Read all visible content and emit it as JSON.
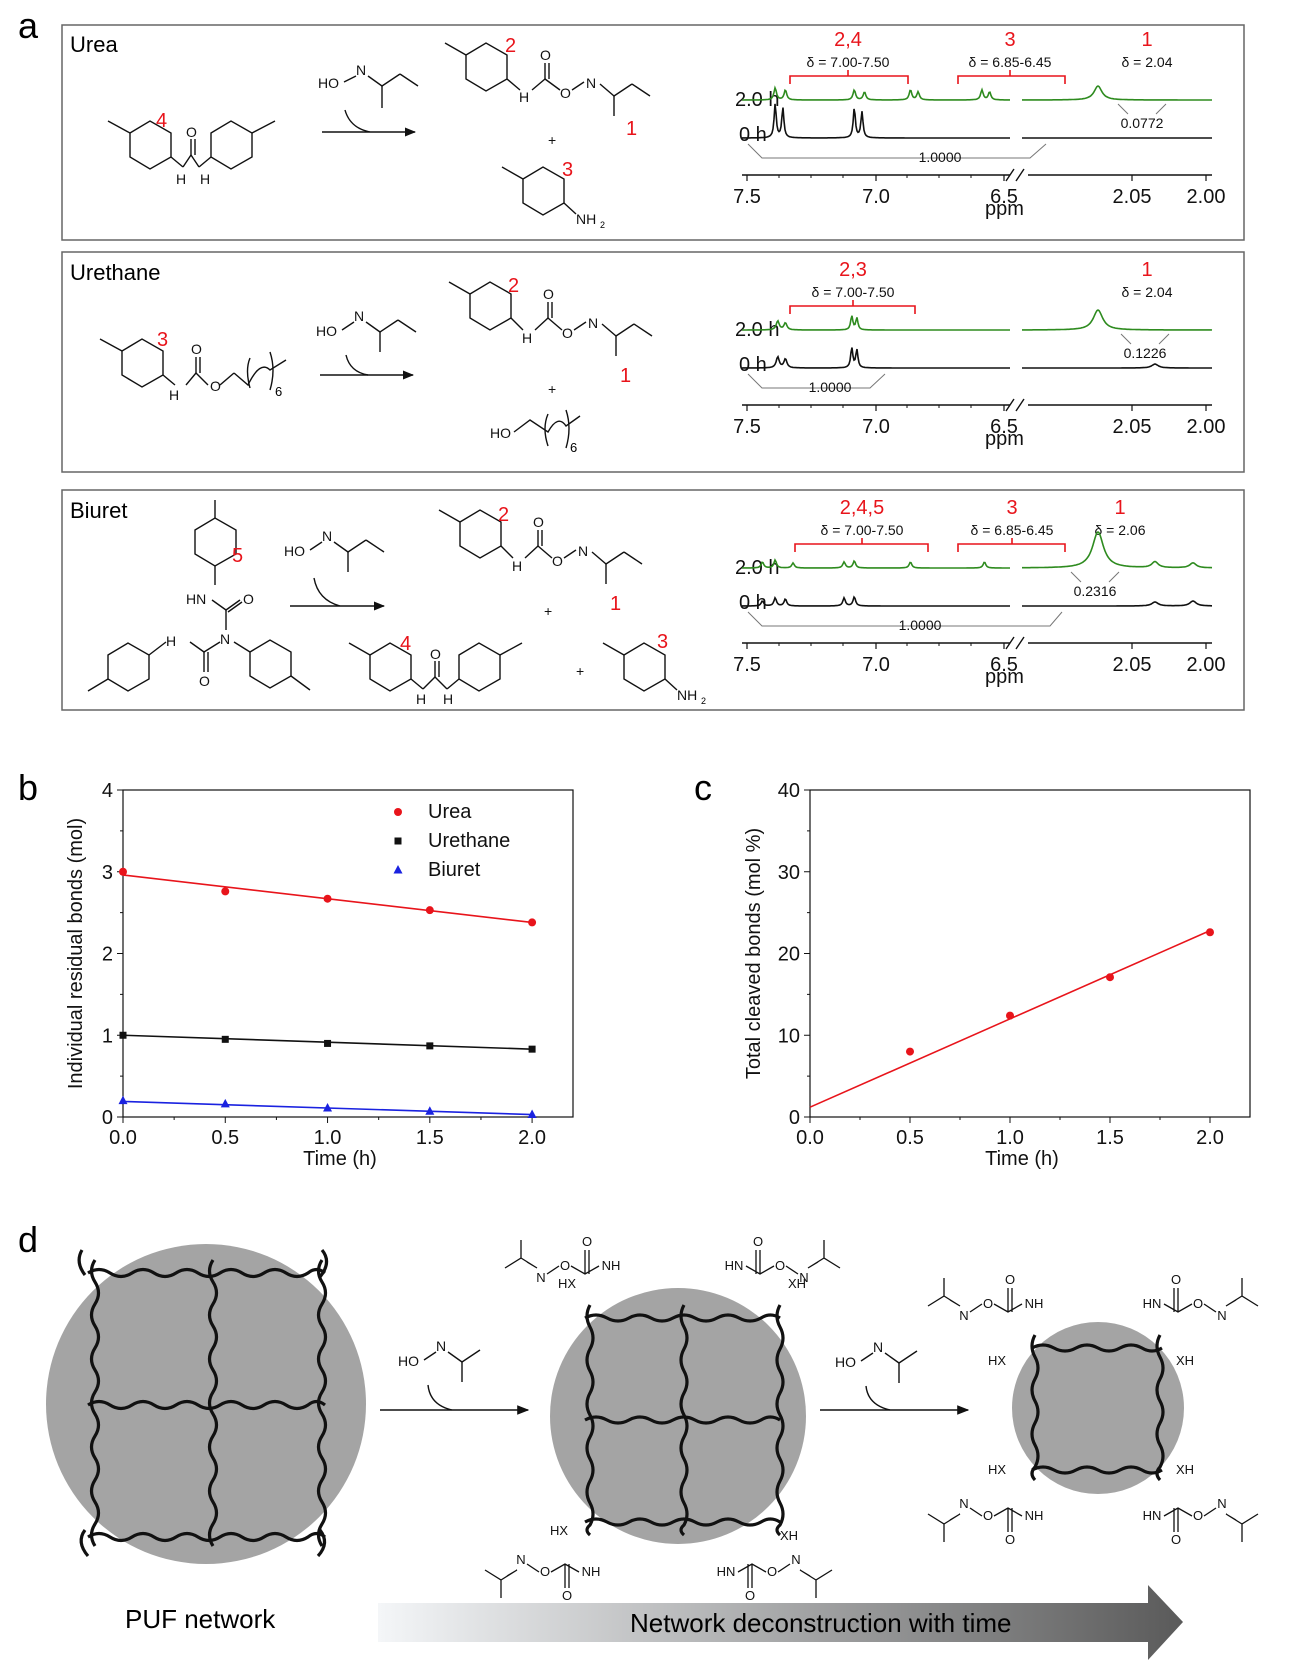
{
  "panel_letters": {
    "a": "a",
    "b": "b",
    "c": "c",
    "d": "d"
  },
  "panel_a": {
    "rows": [
      {
        "name": "Urea",
        "reactant_label": "4",
        "reagent": "HO",
        "product_label_top": "2",
        "product_label_methyl": "1",
        "plus": "+",
        "byproduct_label": "3",
        "byproduct_group": "NH",
        "byproduct_sub": "2",
        "nmr": {
          "groups": [
            {
              "label": "2,4",
              "range": "δ = 7.00-7.50"
            },
            {
              "label": "3",
              "range": "δ = 6.85-6.45"
            },
            {
              "label": "1",
              "range": "δ = 2.04"
            }
          ],
          "time_top": "2.0 h",
          "time_bottom": "0 h",
          "integral_main": "1.0000",
          "integral_peak": "0.0772",
          "axis_unit": "ppm",
          "ticks_left": [
            "7.5",
            "7.0",
            "6.5"
          ],
          "ticks_right": [
            "2.05",
            "2.00"
          ]
        }
      },
      {
        "name": "Urethane",
        "reactant_label": "3",
        "reactant_subscript": "6",
        "reagent": "HO",
        "product_label_top": "2",
        "product_label_methyl": "1",
        "plus": "+",
        "byproduct_group": "HO",
        "byproduct_subscript": "6",
        "nmr": {
          "groups": [
            {
              "label": "2,3",
              "range": "δ = 7.00-7.50"
            },
            {
              "label": "1",
              "range": "δ = 2.04"
            }
          ],
          "time_top": "2.0 h",
          "time_bottom": "0 h",
          "integral_main": "1.0000",
          "integral_peak": "0.1226",
          "axis_unit": "ppm",
          "ticks_left": [
            "7.5",
            "7.0",
            "6.5"
          ],
          "ticks_right": [
            "2.05",
            "2.00"
          ]
        }
      },
      {
        "name": "Biuret",
        "reactant_label": "5",
        "reagent": "HO",
        "product_label_top": "2",
        "product_label_methyl": "1",
        "plus": "+",
        "byproduct_label_urea": "4",
        "byproduct_label_amine": "3",
        "byproduct_group": "NH",
        "byproduct_sub": "2",
        "nmr": {
          "groups": [
            {
              "label": "2,4,5",
              "range": "δ = 7.00-7.50"
            },
            {
              "label": "3",
              "range": "δ = 6.85-6.45"
            },
            {
              "label": "1",
              "range": "δ = 2.06"
            }
          ],
          "time_top": "2.0 h",
          "time_bottom": "0 h",
          "integral_main": "1.0000",
          "integral_peak": "0.2316",
          "axis_unit": "ppm",
          "ticks_left": [
            "7.5",
            "7.0",
            "6.5"
          ],
          "ticks_right": [
            "2.05",
            "2.00"
          ]
        }
      }
    ],
    "atoms": {
      "N": "N",
      "O": "O",
      "H": "H",
      "HN": "HN",
      "NH": "NH"
    }
  },
  "panel_d": {
    "left_label": "PUF network",
    "arrow_label": "Network deconstruction with time",
    "reagent": "HO",
    "groups": {
      "hx": "HX",
      "xh": "XH",
      "nh": "NH",
      "hn": "HN",
      "o": "O",
      "n": "N"
    }
  },
  "colors": {
    "red": "#e8141b",
    "green": "#2e8b1f",
    "black": "#111111",
    "blue": "#1a22e0",
    "gray_disk": "#a4a4a4"
  },
  "chart_data": [
    {
      "type": "scatter",
      "title": "",
      "xlabel": "Time (h)",
      "ylabel": "Individual residual bonds (mol)",
      "xlim": [
        0.0,
        2.2
      ],
      "ylim": [
        0,
        4
      ],
      "xticks": [
        "0.0",
        "0.5",
        "1.0",
        "1.5",
        "2.0"
      ],
      "yticks": [
        "0",
        "1",
        "2",
        "3",
        "4"
      ],
      "legend_position": "top-right",
      "grid": false,
      "series": [
        {
          "name": "Urea",
          "marker": "circle",
          "color": "#e8141b",
          "x": [
            0.0,
            0.5,
            1.0,
            1.5,
            2.0
          ],
          "y": [
            3.0,
            2.76,
            2.67,
            2.53,
            2.38
          ],
          "fit": [
            2.96,
            2.38
          ]
        },
        {
          "name": "Urethane",
          "marker": "square",
          "color": "#111111",
          "x": [
            0.0,
            0.5,
            1.0,
            1.5,
            2.0
          ],
          "y": [
            1.0,
            0.95,
            0.9,
            0.87,
            0.83
          ],
          "fit": [
            1.0,
            0.83
          ]
        },
        {
          "name": "Biuret",
          "marker": "triangle",
          "color": "#1a22e0",
          "x": [
            0.0,
            0.5,
            1.0,
            1.5,
            2.0
          ],
          "y": [
            0.2,
            0.16,
            0.11,
            0.07,
            0.03
          ],
          "fit": [
            0.19,
            0.03
          ]
        }
      ]
    },
    {
      "type": "scatter",
      "title": "",
      "xlabel": "Time (h)",
      "ylabel": "Total cleaved bonds (mol %)",
      "xlim": [
        0.0,
        2.2
      ],
      "ylim": [
        0,
        40
      ],
      "xticks": [
        "0.0",
        "0.5",
        "1.0",
        "1.5",
        "2.0"
      ],
      "yticks": [
        "0",
        "10",
        "20",
        "30",
        "40"
      ],
      "grid": false,
      "series": [
        {
          "marker": "circle",
          "color": "#e8141b",
          "x": [
            0.5,
            1.0,
            1.5,
            2.0
          ],
          "y": [
            8.0,
            12.4,
            17.1,
            22.6
          ],
          "fit": [
            1.2,
            22.8
          ]
        }
      ]
    }
  ]
}
